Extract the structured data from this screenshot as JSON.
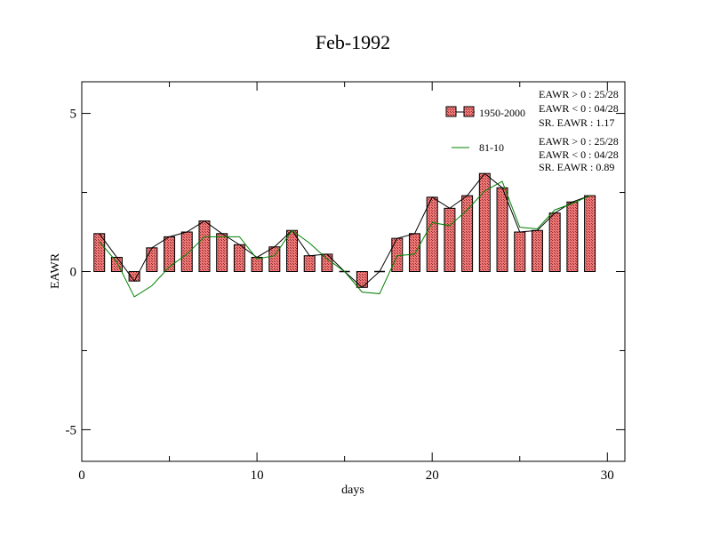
{
  "chart_data": {
    "type": "bar",
    "title": "Feb-1992",
    "xlabel": "days",
    "ylabel": "EAWR",
    "xlim": [
      0,
      31
    ],
    "ylim": [
      -6,
      6
    ],
    "x_ticks": [
      0,
      10,
      20,
      30
    ],
    "y_ticks": [
      -5,
      0,
      5
    ],
    "x": [
      1,
      2,
      3,
      4,
      5,
      6,
      7,
      8,
      9,
      10,
      11,
      12,
      13,
      14,
      15,
      16,
      17,
      18,
      19,
      20,
      21,
      22,
      23,
      24,
      25,
      26,
      27,
      28,
      29
    ],
    "series": [
      {
        "name": "1950-2000",
        "type": "bar+line",
        "values": [
          1.2,
          0.45,
          -0.3,
          0.75,
          1.1,
          1.25,
          1.6,
          1.2,
          0.85,
          0.45,
          0.78,
          1.3,
          0.5,
          0.55,
          0.0,
          -0.5,
          0.0,
          1.05,
          1.2,
          2.35,
          2.0,
          2.4,
          3.1,
          2.65,
          1.25,
          1.3,
          1.85,
          2.2,
          2.4
        ]
      },
      {
        "name": "81-10",
        "type": "line",
        "values": [
          0.95,
          0.3,
          -0.8,
          -0.45,
          0.15,
          0.55,
          1.1,
          1.1,
          1.1,
          0.4,
          0.5,
          1.3,
          0.9,
          0.4,
          0.0,
          -0.65,
          -0.7,
          0.5,
          0.55,
          1.55,
          1.45,
          1.95,
          2.55,
          2.85,
          1.4,
          1.35,
          1.95,
          2.15,
          2.4
        ]
      }
    ],
    "legend_position": "top-right",
    "stats": [
      [
        "EAWR > 0 : 25/28",
        "EAWR < 0 : 04/28",
        "SR. EAWR :  1.17"
      ],
      [
        "EAWR > 0 : 25/28",
        "EAWR < 0 : 04/28",
        "SR. EAWR :  0.89"
      ]
    ],
    "colors": {
      "bar_fill": "#f07878",
      "bar_pattern": "#8b2a2a",
      "line_1950": "#000000",
      "line_8110": "#008000"
    }
  }
}
